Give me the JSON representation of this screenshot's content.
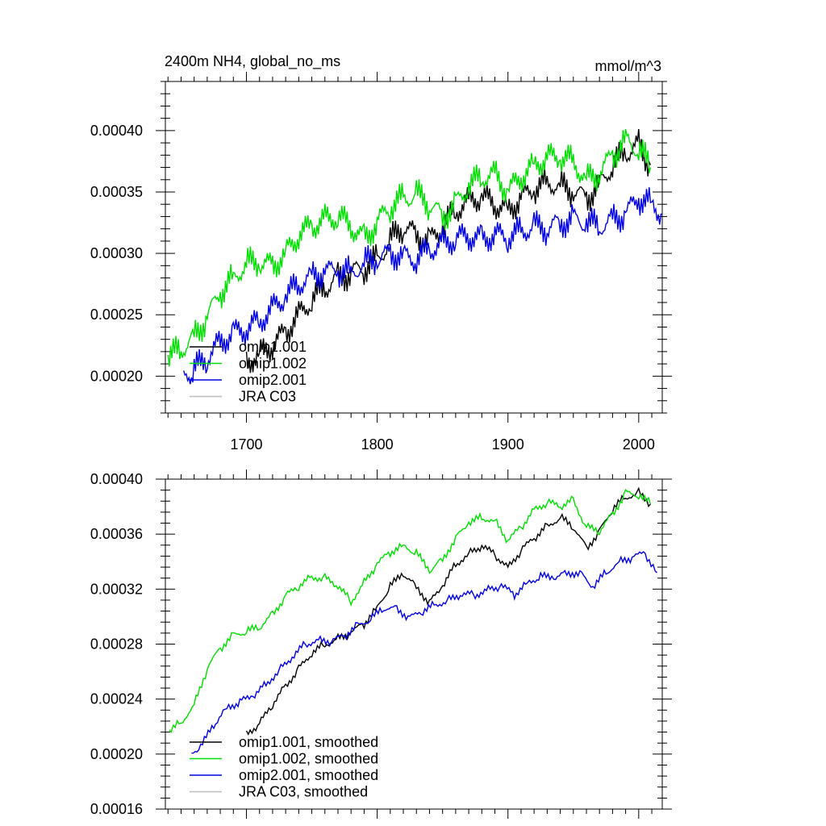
{
  "figure": {
    "title_left": "2400m NH4, global_no_ms",
    "title_right": "mmol/m^3"
  },
  "colors": {
    "omip1_001": "#000000",
    "omip1_002": "#00e000",
    "omip2_001": "#0000e6",
    "jra_c03": "#bbbbbb"
  },
  "chart_data": [
    {
      "type": "line",
      "title": "2400m NH4, global_no_ms",
      "units": "mmol/m^3",
      "xlim": [
        1638,
        2018
      ],
      "ylim": [
        0.00017,
        0.00044
      ],
      "x_ticks": [
        1700,
        1800,
        1900,
        2000
      ],
      "x_tick_labels": [
        "1700",
        "1800",
        "1900",
        "2000"
      ],
      "y_ticks": [
        0.0002,
        0.00025,
        0.0003,
        0.00035,
        0.0004
      ],
      "y_tick_labels": [
        "0.00020",
        "0.00025",
        "0.00030",
        "0.00035",
        "0.00040"
      ],
      "legend_position": "lower-left",
      "legend": [
        "omip1.001",
        "omip1.002",
        "omip2.001",
        "JRA C03"
      ],
      "series": [
        {
          "name": "omip1.001",
          "color": "#000000",
          "x": [
            1700,
            1710,
            1720,
            1730,
            1740,
            1750,
            1760,
            1770,
            1780,
            1790,
            1800,
            1810,
            1820,
            1830,
            1840,
            1850,
            1860,
            1870,
            1880,
            1890,
            1900,
            1910,
            1920,
            1930,
            1940,
            1950,
            1960,
            1970,
            1980,
            1990,
            2000,
            2009
          ],
          "y": [
            0.000212,
            0.000218,
            0.000225,
            0.000236,
            0.00025,
            0.000262,
            0.000272,
            0.00028,
            0.000284,
            0.000288,
            0.000295,
            0.00031,
            0.000322,
            0.000315,
            0.00031,
            0.000322,
            0.000335,
            0.000343,
            0.000346,
            0.00034,
            0.000335,
            0.000345,
            0.000352,
            0.000358,
            0.000355,
            0.00035,
            0.000345,
            0.000356,
            0.000372,
            0.000382,
            0.000388,
            0.000372
          ]
        },
        {
          "name": "omip1.002",
          "color": "#00e000",
          "x": [
            1640,
            1650,
            1660,
            1670,
            1680,
            1690,
            1700,
            1710,
            1720,
            1730,
            1740,
            1750,
            1760,
            1770,
            1780,
            1790,
            1800,
            1810,
            1820,
            1830,
            1840,
            1850,
            1860,
            1870,
            1880,
            1890,
            1900,
            1910,
            1920,
            1930,
            1940,
            1950,
            1960,
            1970,
            1980,
            1990,
            2000,
            2009
          ],
          "y": [
            0.000215,
            0.000222,
            0.000232,
            0.000248,
            0.000268,
            0.00028,
            0.000292,
            0.000292,
            0.00029,
            0.0003,
            0.000315,
            0.000322,
            0.000328,
            0.00033,
            0.000322,
            0.000312,
            0.000325,
            0.000338,
            0.000345,
            0.000348,
            0.00034,
            0.00033,
            0.00034,
            0.000355,
            0.000362,
            0.000365,
            0.00035,
            0.000362,
            0.000372,
            0.000378,
            0.000378,
            0.000375,
            0.00036,
            0.000365,
            0.00038,
            0.000392,
            0.000385,
            0.00037
          ]
        },
        {
          "name": "omip2.001",
          "color": "#0000e6",
          "x": [
            1652,
            1660,
            1670,
            1680,
            1690,
            1700,
            1710,
            1720,
            1730,
            1740,
            1750,
            1760,
            1770,
            1780,
            1790,
            1800,
            1810,
            1820,
            1830,
            1840,
            1850,
            1860,
            1870,
            1880,
            1890,
            1900,
            1910,
            1920,
            1930,
            1940,
            1950,
            1960,
            1970,
            1980,
            1990,
            2000,
            2010,
            2018
          ],
          "y": [
            0.000198,
            0.000205,
            0.000215,
            0.000228,
            0.000235,
            0.000238,
            0.000245,
            0.000255,
            0.000265,
            0.000275,
            0.000282,
            0.000285,
            0.000286,
            0.000284,
            0.000292,
            0.000295,
            0.0003,
            0.000298,
            0.000295,
            0.000303,
            0.000308,
            0.000312,
            0.000314,
            0.000312,
            0.000315,
            0.000313,
            0.000318,
            0.000322,
            0.00032,
            0.000325,
            0.000328,
            0.000325,
            0.000322,
            0.000328,
            0.000332,
            0.000345,
            0.00034,
            0.000332
          ]
        },
        {
          "name": "JRA C03",
          "color": "#bbbbbb",
          "x": [],
          "y": []
        }
      ]
    },
    {
      "type": "line",
      "xlim": [
        1638,
        2018
      ],
      "ylim": [
        0.00016,
        0.0004
      ],
      "x_ticks": [
        1700,
        1800,
        1900,
        2000
      ],
      "y_ticks": [
        0.00016,
        0.0002,
        0.00024,
        0.00028,
        0.00032,
        0.00036,
        0.0004
      ],
      "y_tick_labels": [
        "0.00016",
        "0.00020",
        "0.00024",
        "0.00028",
        "0.00032",
        "0.00036",
        "0.00040"
      ],
      "legend_position": "lower-left",
      "legend": [
        "omip1.001, smoothed",
        "omip1.002, smoothed",
        "omip2.001, smoothed",
        "JRA C03, smoothed"
      ],
      "series": [
        {
          "name": "omip1.001, smoothed",
          "color": "#000000",
          "x": [
            1700,
            1710,
            1720,
            1730,
            1740,
            1750,
            1760,
            1770,
            1780,
            1790,
            1800,
            1810,
            1820,
            1830,
            1840,
            1850,
            1860,
            1870,
            1880,
            1890,
            1900,
            1910,
            1920,
            1930,
            1940,
            1950,
            1960,
            1970,
            1980,
            1990,
            2000,
            2009
          ],
          "y": [
            0.000215,
            0.000222,
            0.000236,
            0.00025,
            0.000262,
            0.000273,
            0.00028,
            0.000284,
            0.000288,
            0.000295,
            0.000307,
            0.000322,
            0.000331,
            0.000322,
            0.00031,
            0.000322,
            0.000338,
            0.000346,
            0.000351,
            0.000345,
            0.000336,
            0.000348,
            0.000357,
            0.000366,
            0.000372,
            0.000365,
            0.00035,
            0.000362,
            0.000378,
            0.000387,
            0.00039,
            0.000382
          ]
        },
        {
          "name": "omip1.002, smoothed",
          "color": "#00e000",
          "x": [
            1641,
            1650,
            1660,
            1670,
            1680,
            1690,
            1700,
            1710,
            1720,
            1730,
            1740,
            1750,
            1760,
            1770,
            1780,
            1790,
            1800,
            1810,
            1820,
            1830,
            1840,
            1850,
            1860,
            1870,
            1880,
            1890,
            1900,
            1910,
            1920,
            1930,
            1940,
            1950,
            1960,
            1970,
            1980,
            1990,
            2000,
            2009
          ],
          "y": [
            0.000217,
            0.000223,
            0.000236,
            0.000262,
            0.000277,
            0.000287,
            0.000289,
            0.000292,
            0.000302,
            0.000315,
            0.000322,
            0.000329,
            0.000328,
            0.000322,
            0.000311,
            0.000325,
            0.000338,
            0.000347,
            0.000352,
            0.000346,
            0.000333,
            0.000342,
            0.000357,
            0.000368,
            0.000372,
            0.00037,
            0.000355,
            0.000365,
            0.000378,
            0.000383,
            0.00038,
            0.000385,
            0.000365,
            0.000362,
            0.000375,
            0.00039,
            0.000388,
            0.000382
          ]
        },
        {
          "name": "omip2.001, smoothed",
          "color": "#0000e6",
          "x": [
            1658,
            1665,
            1675,
            1685,
            1695,
            1705,
            1715,
            1725,
            1735,
            1745,
            1755,
            1765,
            1775,
            1785,
            1795,
            1805,
            1815,
            1825,
            1835,
            1845,
            1855,
            1865,
            1875,
            1885,
            1895,
            1905,
            1915,
            1925,
            1935,
            1945,
            1955,
            1965,
            1975,
            1985,
            1995,
            2005,
            2014
          ],
          "y": [
            0.000199,
            0.000205,
            0.000221,
            0.000234,
            0.000238,
            0.000242,
            0.000251,
            0.000261,
            0.00027,
            0.00028,
            0.000283,
            0.000282,
            0.000286,
            0.000294,
            0.000298,
            0.000306,
            0.000306,
            0.000299,
            0.000304,
            0.000309,
            0.000312,
            0.000316,
            0.000316,
            0.00032,
            0.000322,
            0.000316,
            0.000325,
            0.000329,
            0.000328,
            0.000332,
            0.000332,
            0.000321,
            0.000332,
            0.00034,
            0.000343,
            0.000346,
            0.000332
          ]
        },
        {
          "name": "JRA C03, smoothed",
          "color": "#bbbbbb",
          "x": [],
          "y": []
        }
      ]
    }
  ]
}
